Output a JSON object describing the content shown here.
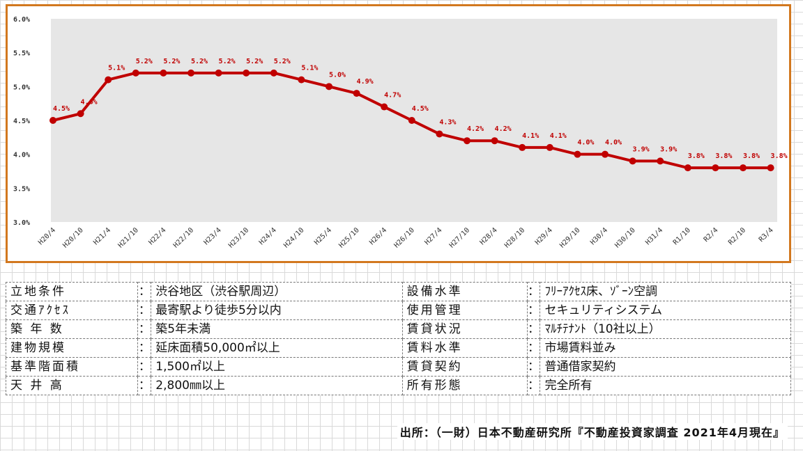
{
  "chart_data": {
    "type": "line",
    "y_ticks": [
      "6.0%",
      "5.5%",
      "5.0%",
      "4.5%",
      "4.0%",
      "3.5%",
      "3.0%"
    ],
    "ylim": [
      3.0,
      6.0
    ],
    "categories": [
      "H20/4",
      "H20/10",
      "H21/4",
      "H21/10",
      "H22/4",
      "H22/10",
      "H23/4",
      "H23/10",
      "H24/4",
      "H24/10",
      "H25/4",
      "H25/10",
      "H26/4",
      "H26/10",
      "H27/4",
      "H27/10",
      "H28/4",
      "H28/10",
      "H29/4",
      "H29/10",
      "H30/4",
      "H30/10",
      "H31/4",
      "R1/10",
      "R2/4",
      "R2/10",
      "R3/4"
    ],
    "series": [
      {
        "values": [
          4.5,
          4.6,
          5.1,
          5.2,
          5.2,
          5.2,
          5.2,
          5.2,
          5.2,
          5.1,
          5.0,
          4.9,
          4.7,
          4.5,
          4.3,
          4.2,
          4.2,
          4.1,
          4.1,
          4.0,
          4.0,
          3.9,
          3.9,
          3.8,
          3.8,
          3.8,
          3.8
        ],
        "labels": [
          "4.5%",
          "4.6%",
          "5.1%",
          "5.2%",
          "5.2%",
          "5.2%",
          "5.2%",
          "5.2%",
          "5.2%",
          "5.1%",
          "5.0%",
          "4.9%",
          "4.7%",
          "4.5%",
          "4.3%",
          "4.2%",
          "4.2%",
          "4.1%",
          "4.1%",
          "4.0%",
          "4.0%",
          "3.9%",
          "3.9%",
          "3.8%",
          "3.8%",
          "3.8%",
          "3.8%"
        ],
        "color": "#c00000"
      }
    ],
    "frame_color": "#d2781f",
    "grid": false,
    "legend": "none"
  },
  "conditions": {
    "rows": [
      {
        "label_left": "立地条件",
        "value_left": "渋谷地区（渋谷駅周辺）",
        "label_right": "設備水準",
        "value_right": "ﾌﾘｰｱｸｾｽ床、ｿﾞｰﾝ空調"
      },
      {
        "label_left": "交通ｱｸｾｽ",
        "value_left": "最寄駅より徒歩5分以内",
        "label_right": "使用管理",
        "value_right": "セキュリティシステム"
      },
      {
        "label_left": "築 年 数",
        "value_left": "築5年未満",
        "label_right": "賃貸状況",
        "value_right": "ﾏﾙﾁﾃﾅﾝﾄ（10社以上）"
      },
      {
        "label_left": "建物規模",
        "value_left": "延床面積50,000㎡以上",
        "label_right": "賃料水準",
        "value_right": "市場賃料並み"
      },
      {
        "label_left": "基準階面積",
        "value_left": "1,500㎡以上",
        "label_right": "賃貸契約",
        "value_right": "普通借家契約"
      },
      {
        "label_left": "天 井 高",
        "value_left": "2,800㎜以上",
        "label_right": "所有形態",
        "value_right": "完全所有"
      }
    ],
    "separator": "："
  },
  "source_note": "出所：（一財）日本不動産研究所『不動産投資家調査 2021年4月現在』"
}
